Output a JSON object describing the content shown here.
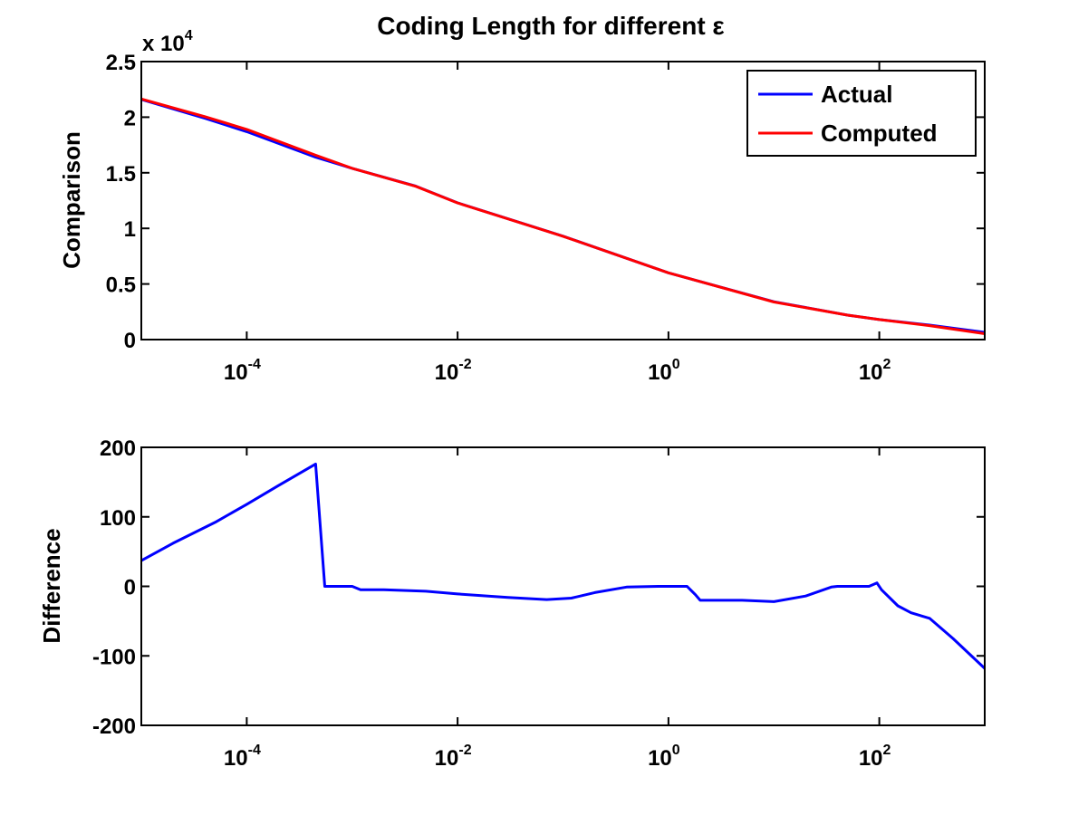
{
  "chart_data": [
    {
      "type": "line",
      "title": "Coding Length for different ε",
      "xlabel": "",
      "ylabel": "Comparison",
      "x_scale": "log",
      "xlim": [
        1e-05,
        1000
      ],
      "ylim": [
        0,
        25000
      ],
      "y_multiplier": "x 10^4",
      "y_multiplier_base": "x 10",
      "y_multiplier_exp": "4",
      "yticks": [
        0,
        0.5,
        1,
        1.5,
        2,
        2.5
      ],
      "xticks": [
        {
          "value": 0.0001,
          "base": "10",
          "exp": "-4"
        },
        {
          "value": 0.01,
          "base": "10",
          "exp": "-2"
        },
        {
          "value": 1,
          "base": "10",
          "exp": "0"
        },
        {
          "value": 100,
          "base": "10",
          "exp": "2"
        }
      ],
      "legend_position": "top-right",
      "colors": {
        "Actual": "#0000ff",
        "Computed": "#ff0000"
      },
      "series": [
        {
          "name": "Actual",
          "color": "#0000ff",
          "x": [
            1e-05,
            4e-05,
            0.0001,
            0.00045,
            0.001,
            0.004,
            0.01,
            0.1,
            1,
            10,
            50,
            100,
            300,
            1000
          ],
          "y": [
            21600,
            19900,
            18700,
            16400,
            15400,
            13800,
            12300,
            9300,
            6000,
            3400,
            2200,
            1800,
            1300,
            650
          ]
        },
        {
          "name": "Computed",
          "color": "#ff0000",
          "x": [
            1e-05,
            4e-05,
            0.0001,
            0.00045,
            0.001,
            0.004,
            0.01,
            0.1,
            1,
            10,
            50,
            100,
            300,
            1000
          ],
          "y": [
            21640,
            20050,
            18900,
            16580,
            15400,
            13790,
            12290,
            9290,
            6000,
            3380,
            2200,
            1800,
            1250,
            530
          ]
        }
      ]
    },
    {
      "type": "line",
      "title": "",
      "xlabel": "",
      "ylabel": "Difference",
      "x_scale": "log",
      "xlim": [
        1e-05,
        1000
      ],
      "ylim": [
        -200,
        200
      ],
      "yticks": [
        -200,
        -100,
        0,
        100,
        200
      ],
      "xticks": [
        {
          "value": 0.0001,
          "base": "10",
          "exp": "-4"
        },
        {
          "value": 0.01,
          "base": "10",
          "exp": "-2"
        },
        {
          "value": 1,
          "base": "10",
          "exp": "0"
        },
        {
          "value": 100,
          "base": "10",
          "exp": "2"
        }
      ],
      "series": [
        {
          "color": "#0000ff",
          "x": [
            1e-05,
            2e-05,
            5e-05,
            0.0001,
            0.0002,
            0.00045,
            0.00055,
            0.001,
            0.0012,
            0.002,
            0.005,
            0.01,
            0.03,
            0.07,
            0.12,
            0.2,
            0.4,
            0.8,
            1.5,
            1.8,
            2,
            5,
            10,
            20,
            35,
            40,
            60,
            80,
            95,
            105,
            150,
            200,
            300,
            500,
            1000
          ],
          "y": [
            37,
            62,
            92,
            118,
            145,
            176,
            0,
            0,
            -5,
            -5,
            -7,
            -11,
            -16,
            -19,
            -17,
            -9,
            -1,
            0,
            0,
            -12,
            -20,
            -20,
            -22,
            -14,
            -1,
            0,
            0,
            0,
            5,
            -5,
            -28,
            -38,
            -46,
            -75,
            -118
          ]
        }
      ]
    }
  ]
}
